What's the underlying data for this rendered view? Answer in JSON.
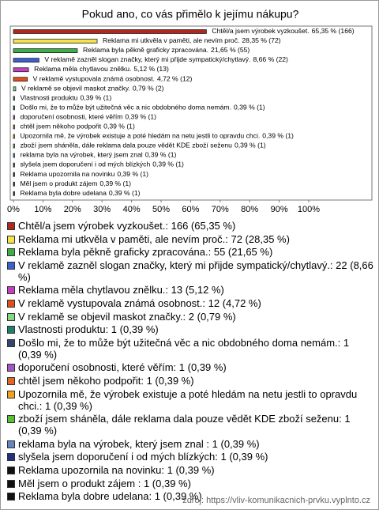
{
  "chart_data": {
    "type": "bar",
    "orientation": "horizontal",
    "title": "Pokud ano, co vás přimělo k jejímu nákupu?",
    "categories": [
      "Chtěl/a jsem výrobek vyzkoušet.",
      "Reklama mi utkvěla v paměti, ale nevím proč.",
      "Reklama byla pěkně graficky zpracována.",
      "V reklamě zazněl slogan značky, který mi přijde sympatický/chytlavý.",
      "Reklama měla chytlavou znělku.",
      "V reklamě vystupovala známá osobnost.",
      "V reklamě se objevil maskot značky.",
      "Vlastnosti produktu",
      "Došlo mi, že to může být užitečná věc a nic obdobného doma nemám.",
      "doporučení osobnosti, které věřím",
      "chtěl jsem někoho podpořit",
      "Upozornila mě, že výrobek existuje a poté hledám na netu jestli to opravdu chci.",
      "zboží jsem sháněla, dále reklama dala pouze vědět KDE zboží seženu",
      "reklama byla na výrobek, který jsem znal",
      "slyšela jsem doporučení i od mých blízkých",
      "Reklama upozornila na novinku",
      "Měl jsem o produkt zájem",
      "Reklama byla dobre udelana"
    ],
    "values": [
      65.35,
      28.35,
      21.65,
      8.66,
      5.12,
      4.72,
      0.79,
      0.39,
      0.39,
      0.39,
      0.39,
      0.39,
      0.39,
      0.39,
      0.39,
      0.39,
      0.39,
      0.39
    ],
    "value_labels": [
      "65,35 % (166)",
      "28,35 % (72)",
      "21,65 % (55)",
      "8,66 % (22)",
      "5,12 % (13)",
      "4,72 % (12)",
      "0,79 % (2)",
      "0,39 % (1)",
      "0,39 % (1)",
      "0,39 % (1)",
      "0,39 % (1)",
      "0,39 % (1)",
      "0,39 % (1)",
      "0,39 % (1)",
      "0,39 % (1)",
      "0,39 % (1)",
      "0,39 % (1)",
      "0,39 % (1)"
    ],
    "colors": [
      "#b3261e",
      "#f2e44a",
      "#3cae48",
      "#3b5fcf",
      "#c43fc4",
      "#e0501a",
      "#86d686",
      "#1f7f6a",
      "#34466e",
      "#a255c4",
      "#e0652a",
      "#f0a21e",
      "#55c233",
      "#6484c4",
      "#1f2f82",
      "#111111",
      "#111111",
      "#111111"
    ],
    "legend_labels": [
      "Chtěl/a jsem výrobek vyzkoušet.: 166 (65,35 %)",
      "Reklama mi utkvěla v paměti, ale nevím proč.: 72 (28,35 %)",
      "Reklama byla pěkně graficky zpracována.: 55 (21,65 %)",
      "V reklamě zazněl slogan značky, který mi přijde sympatický/chytlavý.: 22 (8,66 %)",
      "Reklama měla chytlavou znělku.: 13 (5,12 %)",
      "V reklamě vystupovala známá osobnost.: 12 (4,72 %)",
      "V reklamě se objevil maskot značky.: 2 (0,79 %)",
      "Vlastnosti produktu: 1 (0,39 %)",
      "Došlo mi, že to může být užitečná věc a nic obdobného doma nemám.: 1 (0,39 %)",
      "doporučení osobnosti, které věřím: 1 (0,39 %)",
      "chtěl jsem někoho podpořit: 1 (0,39 %)",
      "Upozornila mě, že výrobek existuje a poté hledám na netu jestli to opravdu chci.: 1 (0,39 %)",
      "zboží jsem sháněla, dále reklama dala pouze vědět KDE zboží seženu: 1 (0,39 %)",
      "reklama byla na výrobek, který jsem znal : 1 (0,39 %)",
      "slyšela jsem doporučení i od mých blízkých: 1 (0,39 %)",
      "Reklama upozornila na novinku: 1 (0,39 %)",
      "Měl jsem o produkt zájem : 1 (0,39 %)",
      "Reklama byla dobre udelana: 1 (0,39 %)"
    ],
    "xlim": [
      0,
      100
    ],
    "xticks": [
      {
        "value": 0,
        "label": "0%"
      },
      {
        "value": 10,
        "label": "10%"
      },
      {
        "value": 20,
        "label": "20%"
      },
      {
        "value": 30,
        "label": "30%"
      },
      {
        "value": 40,
        "label": "40%"
      },
      {
        "value": 50,
        "label": "50%"
      },
      {
        "value": 60,
        "label": "60%"
      },
      {
        "value": 70,
        "label": "70%"
      },
      {
        "value": 80,
        "label": "80%"
      },
      {
        "value": 90,
        "label": "90%"
      },
      {
        "value": 100,
        "label": "100%"
      }
    ],
    "source": "zdroj: https://vliv-komunikacnich-prvku.vyplnto.cz"
  }
}
